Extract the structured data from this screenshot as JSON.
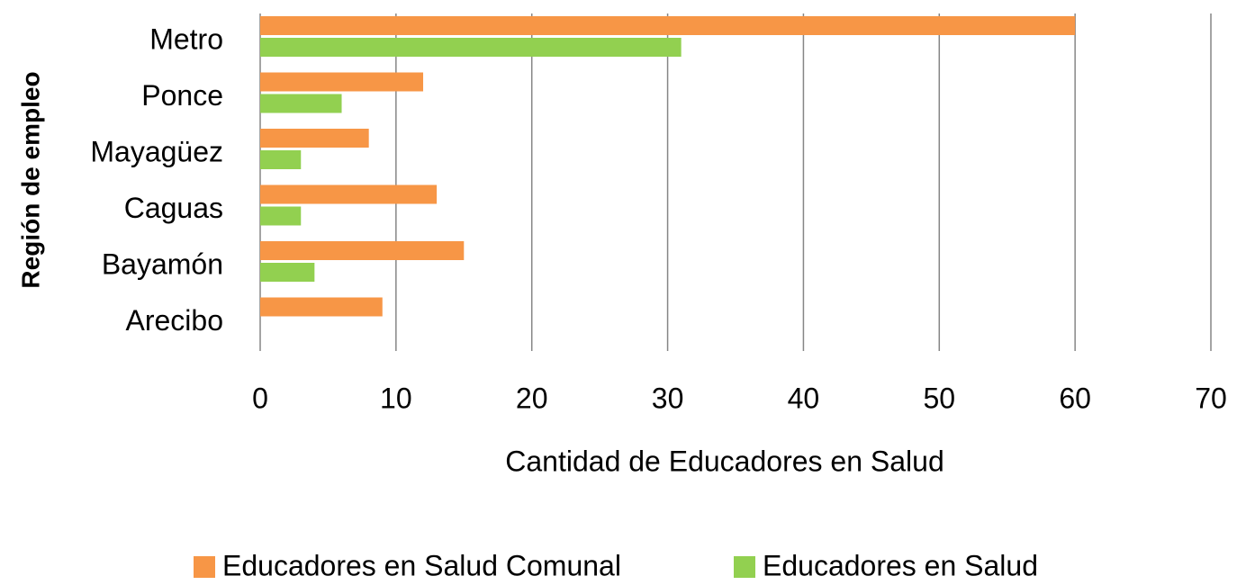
{
  "chart_data": {
    "type": "bar",
    "orientation": "horizontal",
    "x_label": "Cantidad de Educadores en Salud",
    "y_label": "Región de empleo",
    "categories": [
      "Metro",
      "Ponce",
      "Mayagüez",
      "Caguas",
      "Bayamón",
      "Arecibo"
    ],
    "series": [
      {
        "name": "Educadores en Salud Comunal",
        "color": "#f79646",
        "values": [
          60,
          12,
          8,
          13,
          15,
          9
        ]
      },
      {
        "name": "Educadores en Salud",
        "color": "#92d050",
        "values": [
          31,
          6,
          3,
          3,
          4,
          0
        ]
      }
    ],
    "xlim": [
      0,
      70
    ],
    "xticks": [
      0,
      10,
      20,
      30,
      40,
      50,
      60,
      70
    ],
    "grid": true,
    "legend": "bottom"
  }
}
